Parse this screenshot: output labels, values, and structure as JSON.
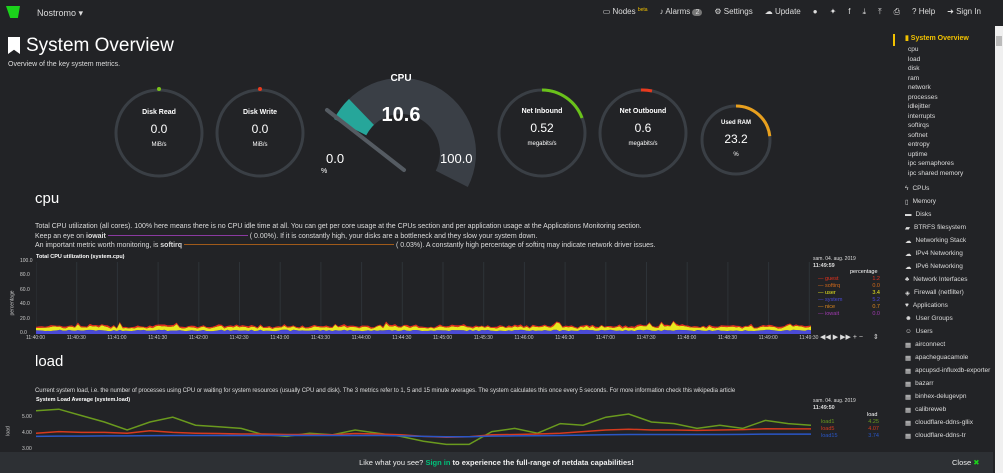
{
  "header": {
    "host": "Nostromo",
    "nav": [
      {
        "icon": "monitor-icon",
        "label": "Nodes",
        "badge": "beta"
      },
      {
        "icon": "bell-icon",
        "label": "Alarms",
        "count": "2"
      },
      {
        "icon": "gear-icon",
        "label": "Settings"
      },
      {
        "icon": "cloud-download-icon",
        "label": "Update"
      },
      {
        "icon": "github-icon",
        "label": ""
      },
      {
        "icon": "twitter-icon",
        "label": ""
      },
      {
        "icon": "facebook-icon",
        "label": ""
      },
      {
        "icon": "download-icon",
        "label": ""
      },
      {
        "icon": "upload-icon",
        "label": ""
      },
      {
        "icon": "print-icon",
        "label": ""
      },
      {
        "icon": "question-icon",
        "label": "Help"
      },
      {
        "icon": "sign-in-icon",
        "label": "Sign In"
      }
    ]
  },
  "page": {
    "title": "System Overview",
    "subtitle": "Overview of the key system metrics."
  },
  "gauges": {
    "disk_read": {
      "title": "Disk Read",
      "value": "0.0",
      "unit": "MiB/s"
    },
    "disk_write": {
      "title": "Disk Write",
      "value": "0.0",
      "unit": "MiB/s"
    },
    "cpu": {
      "title": "CPU",
      "value": "10.6",
      "min": "0.0",
      "max": "100.0",
      "unit": "%",
      "fraction": 0.106
    },
    "net_in": {
      "title": "Net Inbound",
      "value": "0.52",
      "unit": "megabits/s"
    },
    "net_out": {
      "title": "Net Outbound",
      "value": "0.6",
      "unit": "megabits/s"
    },
    "ram": {
      "title": "Used RAM",
      "value": "23.2",
      "unit": "%",
      "fraction": 0.232
    }
  },
  "cpu": {
    "heading": "cpu",
    "desc1": "Total CPU utilization (all cores). 100% here means there is no CPU idle time at all. You can get per core usage at the CPUs section and per application usage at the Applications Monitoring section.",
    "desc2a": "Keep an eye on",
    "desc2b": "iowait",
    "desc2c": "(      0.00%). If it is constantly high, your disks are a bottleneck and they slow your system down.",
    "desc3a": "An important metric worth monitoring, is",
    "desc3b": "softirq",
    "desc3c": "(      0.03%). A constantly high percentage of softirq may indicate network driver issues.",
    "chart_title": "Total CPU utilization (system.cpu)",
    "ylabel": "percentage",
    "yticks": [
      "100.0",
      "80.0",
      "60.0",
      "40.0",
      "20.0",
      "0.0"
    ],
    "xticks": [
      "11:40:00",
      "11:40:30",
      "11:41:00",
      "11:41:30",
      "11:42:00",
      "11:42:30",
      "11:43:00",
      "11:43:30",
      "11:44:00",
      "11:44:30",
      "11:45:00",
      "11:45:30",
      "11:46:00",
      "11:46:30",
      "11:47:00",
      "11:47:30",
      "11:48:00",
      "11:48:30",
      "11:49:00",
      "11:49:30"
    ],
    "date": "sam. 04. aug. 2019",
    "time": "11:49:59",
    "legend_title": "percentage",
    "legend": [
      {
        "name": "guest",
        "value": "1.2",
        "color": "#e8321e"
      },
      {
        "name": "softirq",
        "value": "0.0",
        "color": "#d46a1a"
      },
      {
        "name": "user",
        "value": "3.4",
        "color": "#e8e81e"
      },
      {
        "name": "system",
        "value": "5.2",
        "color": "#4a4ad6"
      },
      {
        "name": "nice",
        "value": "0.7",
        "color": "#e08a1e"
      },
      {
        "name": "iowait",
        "value": "0.0",
        "color": "#a03ab0"
      }
    ]
  },
  "load": {
    "heading": "load",
    "desc": "Current system load, i.e. the number of processes using CPU or waiting for system resources (usually CPU and disk). The 3 metrics refer to 1, 5 and 15 minute averages. The system calculates this once every 5 seconds. For more information check this wikipedia article",
    "chart_title": "System Load Average (system.load)",
    "ylabel": "load",
    "yticks": [
      "5.00",
      "4.00",
      "3.00"
    ],
    "date": "sam. 04. aug. 2019",
    "time": "11:49:50",
    "legend_title": "load",
    "series": [
      {
        "name": "load1",
        "value": "4.25",
        "color": "#6a9a1e",
        "values": [
          5.2,
          5.3,
          4.9,
          4.5,
          4.0,
          4.5,
          4.8,
          4.3,
          4.2,
          4.1,
          3.7,
          3.6,
          3.8,
          3.7,
          4.0,
          3.8,
          3.6,
          3.3,
          3.1,
          3.1,
          3.9,
          4.1,
          3.8,
          4.4,
          4.3,
          4.8,
          5.0,
          4.5,
          4.4,
          4.1,
          4.3,
          4.1,
          4.6,
          4.4,
          4.3
        ]
      },
      {
        "name": "load5",
        "value": "4.07",
        "color": "#d63a1e",
        "values": [
          3.8,
          3.9,
          3.85,
          3.85,
          3.8,
          3.95,
          3.85,
          3.8,
          3.78,
          3.75,
          3.75,
          3.72,
          3.72,
          3.7,
          3.78,
          3.75,
          3.7,
          3.6,
          3.55,
          3.58,
          3.7,
          3.72,
          3.75,
          3.8,
          3.9,
          4.0,
          4.05,
          4.0,
          4.0,
          3.98,
          4.0,
          4.02,
          4.08,
          4.07,
          4.07
        ]
      },
      {
        "name": "load15",
        "value": "3.74",
        "color": "#2a56c6",
        "values": [
          3.6,
          3.62,
          3.62,
          3.63,
          3.63,
          3.65,
          3.66,
          3.66,
          3.66,
          3.66,
          3.66,
          3.66,
          3.66,
          3.66,
          3.66,
          3.66,
          3.63,
          3.6,
          3.58,
          3.58,
          3.62,
          3.63,
          3.64,
          3.66,
          3.68,
          3.7,
          3.72,
          3.72,
          3.72,
          3.72,
          3.72,
          3.73,
          3.74,
          3.74,
          3.74
        ]
      }
    ]
  },
  "sidebar": {
    "active": "System Overview",
    "subs": [
      "cpu",
      "load",
      "disk",
      "ram",
      "network",
      "processes",
      "idlejitter",
      "interrupts",
      "softirqs",
      "softnet",
      "entropy",
      "uptime",
      "ipc semaphores",
      "ipc shared memory"
    ],
    "menus": [
      {
        "icon": "bolt-icon",
        "label": "CPUs"
      },
      {
        "icon": "memory-icon",
        "label": "Memory"
      },
      {
        "icon": "hdd-icon",
        "label": "Disks"
      },
      {
        "icon": "folder-icon",
        "label": "BTRFS filesystem"
      },
      {
        "icon": "cloud-icon",
        "label": "Networking Stack"
      },
      {
        "icon": "cloud-icon",
        "label": "IPv4 Networking"
      },
      {
        "icon": "cloud-icon",
        "label": "IPv6 Networking"
      },
      {
        "icon": "sitemap-icon",
        "label": "Network Interfaces"
      },
      {
        "icon": "shield-icon",
        "label": "Firewall (netfilter)"
      },
      {
        "icon": "heartbeat-icon",
        "label": "Applications"
      },
      {
        "icon": "users-icon",
        "label": "User Groups"
      },
      {
        "icon": "user-icon",
        "label": "Users"
      },
      {
        "icon": "grid-icon",
        "label": "airconnect"
      },
      {
        "icon": "grid-icon",
        "label": "apacheguacamole"
      },
      {
        "icon": "grid-icon",
        "label": "apcupsd-influxdb-exporter"
      },
      {
        "icon": "grid-icon",
        "label": "bazarr"
      },
      {
        "icon": "grid-icon",
        "label": "binhex-delugevpn"
      },
      {
        "icon": "grid-icon",
        "label": "calibreweb"
      },
      {
        "icon": "grid-icon",
        "label": "cloudflare-ddns-gllix"
      },
      {
        "icon": "grid-icon",
        "label": "cloudflare-ddns-tr"
      }
    ]
  },
  "footer": {
    "text1": "Like what you see?",
    "link": "Sign in",
    "text2": "to experience the full-range of netdata capabilities!",
    "close": "Close"
  }
}
